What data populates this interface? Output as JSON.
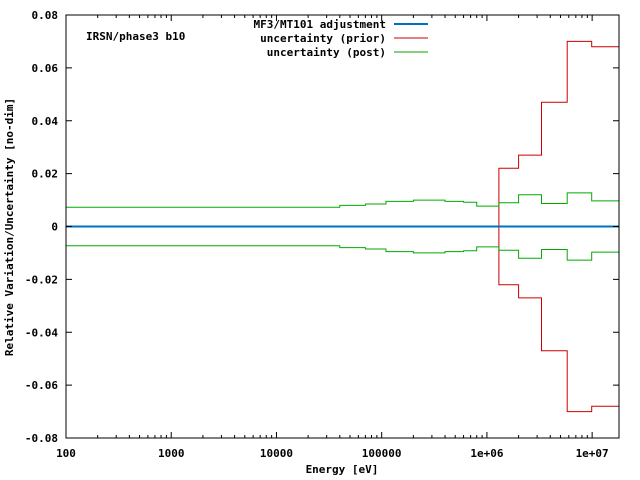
{
  "chart_data": {
    "type": "line",
    "annotation": "IRSN/phase3 b10",
    "xlabel": "Energy [eV]",
    "ylabel": "Relative Variation/Uncertainty [no-dim]",
    "xscale": "log",
    "xlim": [
      100,
      18000000
    ],
    "ylim": [
      -0.08,
      0.08
    ],
    "x_tick_values": [
      100,
      1000,
      10000,
      100000,
      1000000,
      10000000
    ],
    "x_tick_labels": [
      "100",
      "1000",
      "10000",
      "100000",
      "1e+06",
      "1e+07"
    ],
    "y_tick_values": [
      -0.08,
      -0.06,
      -0.04,
      -0.02,
      0,
      0.02,
      0.04,
      0.06,
      0.08
    ],
    "y_tick_labels": [
      "-0.08",
      "-0.06",
      "-0.04",
      "-0.02",
      "0",
      "0.02",
      "0.04",
      "0.06",
      "0.08"
    ],
    "grid": false,
    "legend_position": "top-center",
    "series": [
      {
        "name": "MF3/MT101 adjustment",
        "color": "#0072bd",
        "style": "line",
        "x": [
          100,
          18000000
        ],
        "y": [
          0,
          0
        ]
      },
      {
        "name": "uncertainty (prior)",
        "color": "#cc0000",
        "style": "step",
        "mirrored": true,
        "edges": [
          1300000,
          2000000,
          3300000,
          5800000,
          9900000,
          18000000
        ],
        "values": [
          0.022,
          0.027,
          0.047,
          0.07,
          0.068
        ]
      },
      {
        "name": "uncertainty (post)",
        "color": "#00aa00",
        "style": "step",
        "mirrored": true,
        "edges": [
          100,
          40000,
          70000,
          110000,
          200000,
          400000,
          600000,
          800000,
          1300000,
          2000000,
          3300000,
          5800000,
          9900000,
          18000000
        ],
        "values": [
          0.0073,
          0.008,
          0.0085,
          0.0095,
          0.01,
          0.0095,
          0.0092,
          0.0077,
          0.009,
          0.012,
          0.0087,
          0.0127,
          0.0097
        ]
      }
    ]
  }
}
